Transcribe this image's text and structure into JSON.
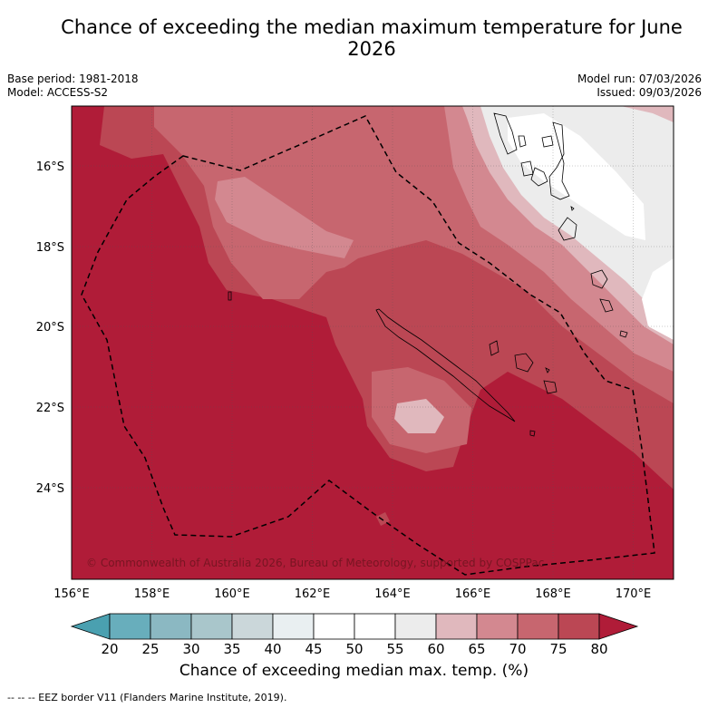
{
  "title": "Chance of exceeding the median maximum temperature for June 2026",
  "base_period": "Base period: 1981-2018",
  "model": "Model: ACCESS-S2",
  "model_run": "Model run: 07/03/2026",
  "issued": "Issued: 09/03/2026",
  "copyright": "© Commonwealth of Australia 2026, Bureau of Meteorology, supported by COSPPac",
  "lat_ticks": [
    "16°S",
    "18°S",
    "20°S",
    "22°S",
    "24°S"
  ],
  "lon_ticks": [
    "156°E",
    "158°E",
    "160°E",
    "162°E",
    "164°E",
    "166°E",
    "168°E",
    "170°E"
  ],
  "colorbar": {
    "labels": [
      "20",
      "25",
      "30",
      "35",
      "40",
      "45",
      "50",
      "55",
      "60",
      "65",
      "70",
      "75",
      "80"
    ],
    "colors": [
      "#4aa0b0",
      "#68aebc",
      "#8bb8c2",
      "#a9c6cb",
      "#cbd7da",
      "#e9eff1",
      "#ffffff",
      "#ffffff",
      "#ececec",
      "#e0b8bd",
      "#d38890",
      "#c7666f",
      "#bb4754",
      "#b01c38"
    ],
    "title": "Chance of exceeding median max. temp. (%)"
  },
  "legend_note": "-- -- -- EEZ border V11 (Flanders Marine Institute, 2019)."
}
